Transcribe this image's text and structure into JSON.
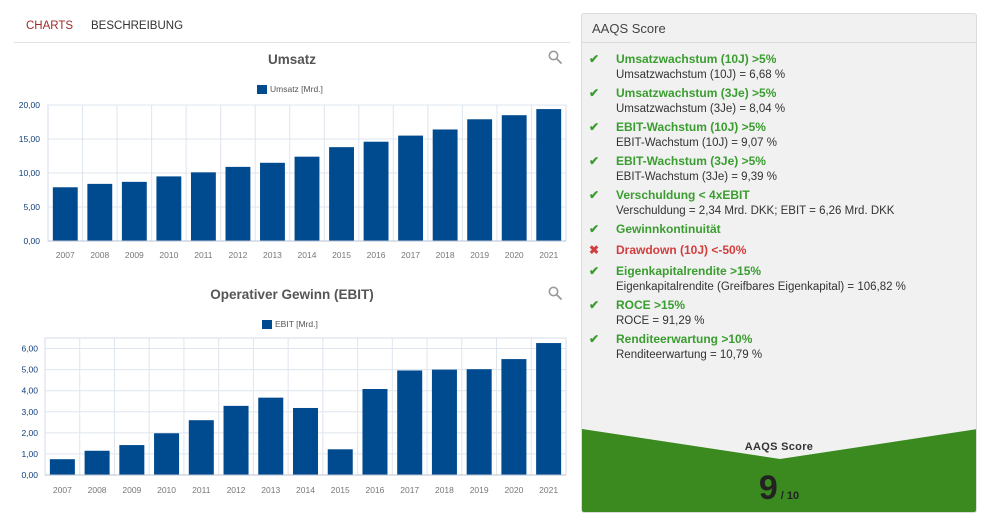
{
  "tabs": [
    {
      "label": "CHARTS",
      "active": true
    },
    {
      "label": "BESCHREIBUNG",
      "active": false
    }
  ],
  "charts": {
    "accent_color": "#004a8f",
    "zoom_icon": "search-icon"
  },
  "chart_data": [
    {
      "type": "bar",
      "title": "Umsatz",
      "legend": "Umsatz [Mrd.]",
      "categories": [
        "2007",
        "2008",
        "2009",
        "2010",
        "2011",
        "2012",
        "2013",
        "2014",
        "2015",
        "2016",
        "2017",
        "2018",
        "2019",
        "2020",
        "2021"
      ],
      "values": [
        7.9,
        8.4,
        8.7,
        9.5,
        10.1,
        10.9,
        11.5,
        12.4,
        13.8,
        14.6,
        15.5,
        16.4,
        17.9,
        18.5,
        19.4
      ],
      "ylim": [
        0,
        20
      ],
      "yticks": [
        "0,00",
        "5,00",
        "10,00",
        "15,00",
        "20,00"
      ],
      "grid": true
    },
    {
      "type": "bar",
      "title": "Operativer Gewinn (EBIT)",
      "legend": "EBIT [Mrd.]",
      "categories": [
        "2007",
        "2008",
        "2009",
        "2010",
        "2011",
        "2012",
        "2013",
        "2014",
        "2015",
        "2016",
        "2017",
        "2018",
        "2019",
        "2020",
        "2021"
      ],
      "values": [
        0.75,
        1.15,
        1.42,
        1.98,
        2.6,
        3.28,
        3.67,
        3.18,
        1.22,
        4.08,
        4.96,
        5.0,
        5.02,
        5.5,
        6.26
      ],
      "ylim": [
        0,
        6.5
      ],
      "yticks": [
        "0,00",
        "1,00",
        "2,00",
        "3,00",
        "4,00",
        "5,00",
        "6,00"
      ],
      "grid": true
    }
  ],
  "aaqs": {
    "header": "AAQS Score",
    "criteria": [
      {
        "status": "pass",
        "icon": "check-icon",
        "title": "Umsatzwachstum (10J) >5%",
        "detail": "Umsatzwachstum (10J) = 6,68 %"
      },
      {
        "status": "pass",
        "icon": "check-icon",
        "title": "Umsatzwachstum (3Je) >5%",
        "detail": "Umsatzwachstum (3Je) = 8,04 %"
      },
      {
        "status": "pass",
        "icon": "check-icon",
        "title": "EBIT-Wachstum (10J) >5%",
        "detail": "EBIT-Wachstum (10J) = 9,07 %"
      },
      {
        "status": "pass",
        "icon": "check-icon",
        "title": "EBIT-Wachstum (3Je) >5%",
        "detail": "EBIT-Wachstum (3Je) = 9,39 %"
      },
      {
        "status": "pass",
        "icon": "check-icon",
        "title": "Verschuldung < 4xEBIT",
        "detail": "Verschuldung = 2,34 Mrd. DKK; EBIT = 6,26 Mrd. DKK"
      },
      {
        "status": "pass",
        "icon": "check-icon",
        "title": "Gewinnkontinuität",
        "detail": ""
      },
      {
        "status": "fail",
        "icon": "cross-icon",
        "title": "Drawdown (10J) <-50%",
        "detail": ""
      },
      {
        "status": "pass",
        "icon": "check-icon",
        "title": "Eigenkapitalrendite >15%",
        "detail": "Eigenkapitalrendite (Greifbares Eigenkapital) = 106,82 %"
      },
      {
        "status": "pass",
        "icon": "check-icon",
        "title": "ROCE >15%",
        "detail": "ROCE = 91,29 %"
      },
      {
        "status": "pass",
        "icon": "check-icon",
        "title": "Renditeerwartung >10%",
        "detail": "Renditeerwartung = 10,79 %"
      }
    ],
    "score_label": "AAQS Score",
    "score": "9",
    "score_max": "/ 10",
    "score_color": "#3a8a1f",
    "pass_color": "#3a9d2f",
    "fail_color": "#d23d3d"
  }
}
